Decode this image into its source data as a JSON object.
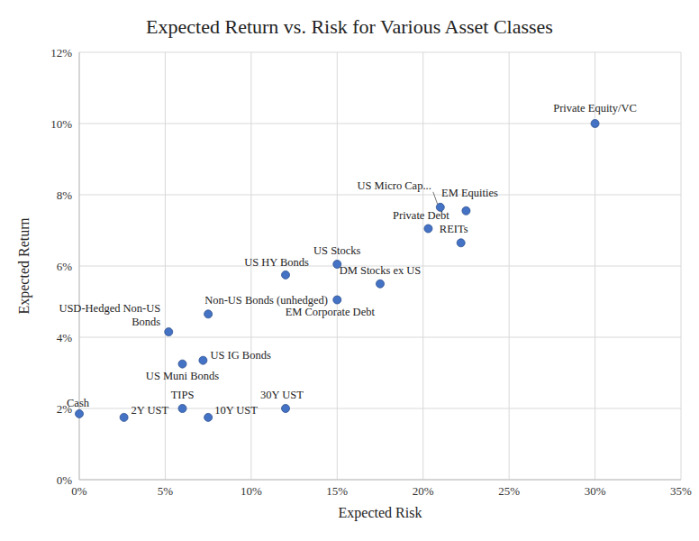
{
  "chart_data": {
    "type": "scatter",
    "title": "Expected Return vs. Risk for Various Asset Classes",
    "x_label": "Expected Risk",
    "y_label": "Expected Return",
    "labels": [
      "Cash",
      "2Y UST",
      "TIPS",
      "10Y UST",
      "30Y UST",
      "US Muni Bonds",
      "US IG Bonds",
      "USD-Hedged Non-US\nBonds",
      "Non-US Bonds (unhedged)",
      "US HY Bonds",
      "US Stocks",
      "EM Corporate Debt",
      "DM Stocks ex US",
      "Private Debt",
      "US Micro Cap...",
      "EM Equities",
      "REITs",
      "Private Equity/VC"
    ],
    "x": [
      0,
      2.6,
      6,
      7.5,
      12,
      6,
      7.2,
      5.2,
      7.5,
      12,
      15,
      15,
      17.5,
      20.3,
      21,
      22.5,
      22.2,
      30
    ],
    "values": [
      1.85,
      1.75,
      2.0,
      1.75,
      2.0,
      3.25,
      3.35,
      4.15,
      4.65,
      5.75,
      6.05,
      5.05,
      5.5,
      7.05,
      7.65,
      7.55,
      6.65,
      10.0
    ],
    "color": "#4472c4",
    "marker": "circle",
    "grid": true,
    "xlim": [
      0,
      35
    ],
    "xticks": [
      {
        "value": 0,
        "label": "0%"
      },
      {
        "value": 5,
        "label": "5%"
      },
      {
        "value": 10,
        "label": "10%"
      },
      {
        "value": 15,
        "label": "15%"
      },
      {
        "value": 20,
        "label": "20%"
      },
      {
        "value": 25,
        "label": "25%"
      },
      {
        "value": 30,
        "label": "30%"
      },
      {
        "value": 35,
        "label": "35%"
      }
    ],
    "ylim": [
      0,
      12
    ],
    "yticks": [
      {
        "value": 0,
        "label": "0%"
      },
      {
        "value": 2,
        "label": "2%"
      },
      {
        "value": 4,
        "label": "4%"
      },
      {
        "value": 6,
        "label": "6%"
      },
      {
        "value": 8,
        "label": "8%"
      },
      {
        "value": 10,
        "label": "10%"
      },
      {
        "value": 12,
        "label": "12%"
      }
    ]
  }
}
